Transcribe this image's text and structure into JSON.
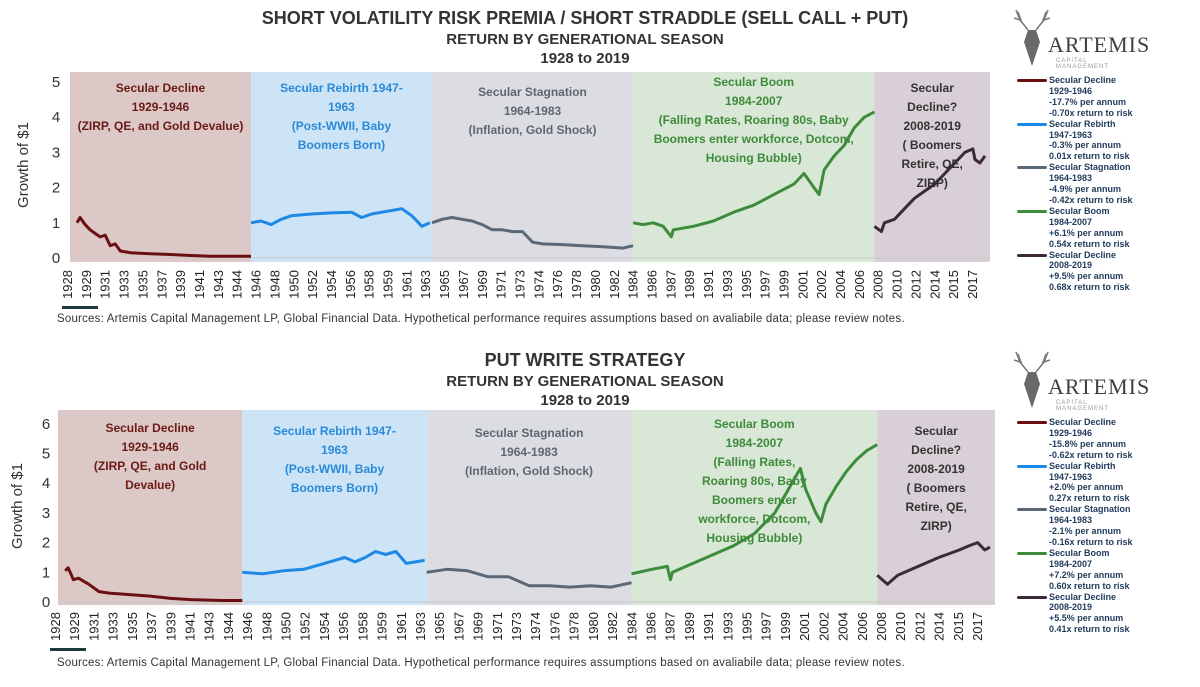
{
  "sources": "Sources: Artemis Capital Management LP, Global Financial Data. Hypothetical performance requires assumptions based on avaliabile data; please review notes.",
  "logo": {
    "name": "ARTEMIS",
    "sub": "CAPITAL MANAGEMENT"
  },
  "colors": {
    "decline": "#6b0f12",
    "rebirth": "#1e88e5",
    "stagnation": "#5b6878",
    "boom": "#3c8c3c",
    "decline2": "#3d2a38"
  },
  "chart_data": [
    {
      "type": "line",
      "title": "SHORT VOLATILITY RISK PREMIA / SHORT STRADDLE (SELL CALL + PUT)",
      "subtitle": "RETURN BY GENERATIONAL SEASON",
      "subtitle2": "1928 to 2019",
      "ylabel": "Growth of $1",
      "ylim": [
        0,
        5
      ],
      "yticks": [
        "0",
        "1",
        "2",
        "3",
        "4",
        "5"
      ],
      "xticks": [
        "1928",
        "1929",
        "1931",
        "1933",
        "1935",
        "1937",
        "1939",
        "1941",
        "1943",
        "1944",
        "1946",
        "1948",
        "1950",
        "1952",
        "1954",
        "1956",
        "1958",
        "1959",
        "1961",
        "1963",
        "1965",
        "1967",
        "1969",
        "1971",
        "1973",
        "1974",
        "1976",
        "1978",
        "1980",
        "1982",
        "1984",
        "1986",
        "1987",
        "1989",
        "1991",
        "1993",
        "1995",
        "1997",
        "1999",
        "2001",
        "2002",
        "2004",
        "2006",
        "2008",
        "2010",
        "2012",
        "2014",
        "2015",
        "2017"
      ],
      "seasons": [
        {
          "key": "decline",
          "range": [
            1928,
            1946
          ],
          "text": [
            "Secular Decline",
            "1929-1946",
            "(ZIRP, QE, and Gold Devalue)"
          ]
        },
        {
          "key": "rebirth",
          "range": [
            1946,
            1964
          ],
          "text": [
            "Secular Rebirth 1947-",
            "1963",
            "(Post-WWII, Baby",
            "Boomers Born)"
          ]
        },
        {
          "key": "stagnation",
          "range": [
            1964,
            1984
          ],
          "text": [
            "Secular Stagnation",
            "1964-1983",
            "(Inflation, Gold Shock)"
          ]
        },
        {
          "key": "boom",
          "range": [
            1984,
            2008
          ],
          "text": [
            "Secular Boom",
            "1984-2007",
            "(Falling Rates, Roaring 80s, Baby",
            "Boomers enter workforce, Dotcom,",
            "Housing Bubble)"
          ]
        },
        {
          "key": "decline2",
          "range": [
            2008,
            2019.5
          ],
          "text": [
            "Secular",
            "Decline?",
            "2008-2019",
            "( Boomers",
            "Retire, QE,",
            "ZIRP)"
          ]
        }
      ],
      "series": [
        {
          "name": "Secular Decline",
          "key": "decline",
          "stats": [
            "1929-1946",
            "-17.7% per annum",
            "-0.70x return to risk"
          ],
          "points": [
            [
              1928.7,
              1.0
            ],
            [
              1929,
              1.15
            ],
            [
              1929.5,
              0.95
            ],
            [
              1930,
              0.8
            ],
            [
              1930.5,
              0.7
            ],
            [
              1931,
              0.6
            ],
            [
              1931.5,
              0.65
            ],
            [
              1932,
              0.35
            ],
            [
              1932.5,
              0.4
            ],
            [
              1933,
              0.2
            ],
            [
              1934,
              0.15
            ],
            [
              1936,
              0.12
            ],
            [
              1938,
              0.1
            ],
            [
              1940,
              0.07
            ],
            [
              1942,
              0.05
            ],
            [
              1944,
              0.05
            ],
            [
              1946,
              0.05
            ]
          ]
        },
        {
          "name": "Secular Rebirth",
          "key": "rebirth",
          "stats": [
            "1947-1963",
            "-0.3% per annum",
            "0.01x return to risk"
          ],
          "points": [
            [
              1946,
              1.0
            ],
            [
              1947,
              1.05
            ],
            [
              1948,
              0.95
            ],
            [
              1949,
              1.1
            ],
            [
              1950,
              1.2
            ],
            [
              1952,
              1.25
            ],
            [
              1954,
              1.28
            ],
            [
              1956,
              1.3
            ],
            [
              1957,
              1.15
            ],
            [
              1958,
              1.25
            ],
            [
              1959,
              1.3
            ],
            [
              1960,
              1.35
            ],
            [
              1961,
              1.4
            ],
            [
              1962,
              1.2
            ],
            [
              1963,
              0.9
            ],
            [
              1963.8,
              1.0
            ]
          ]
        },
        {
          "name": "Secular Stagnation",
          "key": "stagnation",
          "stats": [
            "1964-1983",
            "-4.9% per annum",
            "-0.42x return to risk"
          ],
          "points": [
            [
              1964,
              1.0
            ],
            [
              1965,
              1.1
            ],
            [
              1966,
              1.15
            ],
            [
              1967,
              1.1
            ],
            [
              1968,
              1.05
            ],
            [
              1969,
              0.95
            ],
            [
              1970,
              0.8
            ],
            [
              1971,
              0.8
            ],
            [
              1972,
              0.75
            ],
            [
              1973,
              0.75
            ],
            [
              1974,
              0.45
            ],
            [
              1975,
              0.4
            ],
            [
              1977,
              0.38
            ],
            [
              1979,
              0.35
            ],
            [
              1981,
              0.32
            ],
            [
              1982,
              0.3
            ],
            [
              1983,
              0.28
            ],
            [
              1984,
              0.35
            ]
          ]
        },
        {
          "name": "Secular Boom",
          "key": "boom",
          "stats": [
            "1984-2007",
            "+6.1% per annum",
            "0.54x return to risk"
          ],
          "points": [
            [
              1984,
              1.0
            ],
            [
              1985,
              0.95
            ],
            [
              1986,
              1.0
            ],
            [
              1987,
              0.9
            ],
            [
              1987.8,
              0.6
            ],
            [
              1988,
              0.8
            ],
            [
              1990,
              0.9
            ],
            [
              1992,
              1.05
            ],
            [
              1994,
              1.3
            ],
            [
              1996,
              1.5
            ],
            [
              1998,
              1.8
            ],
            [
              2000,
              2.1
            ],
            [
              2001,
              2.4
            ],
            [
              2002,
              2.0
            ],
            [
              2002.5,
              1.8
            ],
            [
              2003,
              2.5
            ],
            [
              2004,
              2.9
            ],
            [
              2005,
              3.2
            ],
            [
              2006,
              3.7
            ],
            [
              2007,
              4.0
            ],
            [
              2008,
              4.15
            ]
          ]
        },
        {
          "name": "Secular Decline",
          "key": "decline2",
          "stats": [
            "2008-2019",
            "+9.5% per annum",
            "0.68x return to risk"
          ],
          "points": [
            [
              2008,
              0.9
            ],
            [
              2008.7,
              0.75
            ],
            [
              2009,
              1.0
            ],
            [
              2010,
              1.1
            ],
            [
              2011,
              1.4
            ],
            [
              2012,
              1.7
            ],
            [
              2013,
              1.9
            ],
            [
              2014,
              2.1
            ],
            [
              2015,
              2.4
            ],
            [
              2016,
              2.7
            ],
            [
              2017,
              3.0
            ],
            [
              2017.8,
              3.1
            ],
            [
              2018,
              2.8
            ],
            [
              2018.5,
              2.7
            ],
            [
              2019,
              2.9
            ]
          ]
        }
      ]
    },
    {
      "type": "line",
      "title": "PUT WRITE STRATEGY",
      "subtitle": "RETURN BY GENERATIONAL SEASON",
      "subtitle2": "1928 to 2019",
      "ylabel": "Growth of $1",
      "ylim": [
        0,
        6
      ],
      "yticks": [
        "0",
        "1",
        "2",
        "3",
        "4",
        "5",
        "6"
      ],
      "xticks": [
        "1928",
        "1929",
        "1931",
        "1933",
        "1935",
        "1937",
        "1939",
        "1941",
        "1943",
        "1944",
        "1946",
        "1948",
        "1950",
        "1952",
        "1954",
        "1956",
        "1958",
        "1959",
        "1961",
        "1963",
        "1965",
        "1967",
        "1969",
        "1971",
        "1973",
        "1974",
        "1976",
        "1978",
        "1980",
        "1982",
        "1984",
        "1986",
        "1987",
        "1989",
        "1991",
        "1993",
        "1995",
        "1997",
        "1999",
        "2001",
        "2002",
        "2004",
        "2006",
        "2008",
        "2010",
        "2012",
        "2014",
        "2015",
        "2017"
      ],
      "seasons": [
        {
          "key": "decline",
          "range": [
            1928,
            1946
          ],
          "text": [
            "Secular Decline",
            "1929-1946",
            "(ZIRP, QE, and Gold",
            "Devalue)"
          ]
        },
        {
          "key": "rebirth",
          "range": [
            1946,
            1964
          ],
          "text": [
            "Secular Rebirth 1947-",
            "1963",
            "(Post-WWII, Baby",
            "Boomers Born)"
          ]
        },
        {
          "key": "stagnation",
          "range": [
            1964,
            1984
          ],
          "text": [
            "Secular Stagnation",
            "1964-1983",
            "(Inflation, Gold Shock)"
          ]
        },
        {
          "key": "boom",
          "range": [
            1984,
            2008
          ],
          "text": [
            "Secular Boom",
            "1984-2007",
            "(Falling Rates,",
            "Roaring 80s, Baby",
            "Boomers enter",
            "workforce, Dotcom,",
            "Housing Bubble)"
          ]
        },
        {
          "key": "decline2",
          "range": [
            2008,
            2019.5
          ],
          "text": [
            "Secular",
            "Decline?",
            "2008-2019",
            "( Boomers",
            "Retire, QE,",
            "ZIRP)"
          ]
        }
      ],
      "series": [
        {
          "name": "Secular Decline",
          "key": "decline",
          "stats": [
            "1929-1946",
            "-15.8% per annum",
            "-0.62x return to risk"
          ],
          "points": [
            [
              1928.7,
              1.05
            ],
            [
              1929,
              1.15
            ],
            [
              1929.5,
              0.75
            ],
            [
              1930,
              0.8
            ],
            [
              1931,
              0.6
            ],
            [
              1932,
              0.35
            ],
            [
              1933,
              0.3
            ],
            [
              1935,
              0.25
            ],
            [
              1937,
              0.2
            ],
            [
              1939,
              0.12
            ],
            [
              1941,
              0.08
            ],
            [
              1944,
              0.05
            ],
            [
              1946,
              0.05
            ]
          ]
        },
        {
          "name": "Secular Rebirth",
          "key": "rebirth",
          "stats": [
            "1947-1963",
            "+2.0% per annum",
            "0.27x return to risk"
          ],
          "points": [
            [
              1946,
              1.0
            ],
            [
              1948,
              0.95
            ],
            [
              1950,
              1.05
            ],
            [
              1952,
              1.1
            ],
            [
              1954,
              1.3
            ],
            [
              1956,
              1.5
            ],
            [
              1957,
              1.35
            ],
            [
              1958,
              1.5
            ],
            [
              1959,
              1.7
            ],
            [
              1960,
              1.6
            ],
            [
              1961,
              1.7
            ],
            [
              1962,
              1.3
            ],
            [
              1963.8,
              1.4
            ]
          ]
        },
        {
          "name": "Secular Stagnation",
          "key": "stagnation",
          "stats": [
            "1964-1983",
            "-2.1% per annum",
            "-0.16x return to risk"
          ],
          "points": [
            [
              1964,
              1.0
            ],
            [
              1966,
              1.1
            ],
            [
              1968,
              1.05
            ],
            [
              1970,
              0.85
            ],
            [
              1972,
              0.85
            ],
            [
              1974,
              0.55
            ],
            [
              1976,
              0.55
            ],
            [
              1978,
              0.5
            ],
            [
              1980,
              0.55
            ],
            [
              1982,
              0.5
            ],
            [
              1984,
              0.65
            ]
          ]
        },
        {
          "name": "Secular Boom",
          "key": "boom",
          "stats": [
            "1984-2007",
            "+7.2% per annum",
            "0.60x return to risk"
          ],
          "points": [
            [
              1984,
              0.95
            ],
            [
              1986,
              1.1
            ],
            [
              1987.5,
              1.2
            ],
            [
              1987.8,
              0.75
            ],
            [
              1988,
              1.0
            ],
            [
              1990,
              1.3
            ],
            [
              1992,
              1.6
            ],
            [
              1994,
              1.9
            ],
            [
              1996,
              2.3
            ],
            [
              1998,
              3.0
            ],
            [
              1999,
              3.6
            ],
            [
              2000,
              4.2
            ],
            [
              2000.5,
              4.5
            ],
            [
              2001,
              3.8
            ],
            [
              2002,
              3.0
            ],
            [
              2002.5,
              2.7
            ],
            [
              2003,
              3.3
            ],
            [
              2004,
              3.9
            ],
            [
              2005,
              4.4
            ],
            [
              2006,
              4.8
            ],
            [
              2007,
              5.1
            ],
            [
              2008,
              5.3
            ]
          ]
        },
        {
          "name": "Secular Decline",
          "key": "decline2",
          "stats": [
            "2008-2019",
            "+5.5% per annum",
            "0.41x return to risk"
          ],
          "points": [
            [
              2008,
              0.9
            ],
            [
              2009,
              0.6
            ],
            [
              2010,
              0.9
            ],
            [
              2012,
              1.2
            ],
            [
              2014,
              1.5
            ],
            [
              2016,
              1.75
            ],
            [
              2017,
              1.9
            ],
            [
              2017.8,
              2.0
            ],
            [
              2018.5,
              1.75
            ],
            [
              2019,
              1.85
            ]
          ]
        }
      ]
    }
  ]
}
